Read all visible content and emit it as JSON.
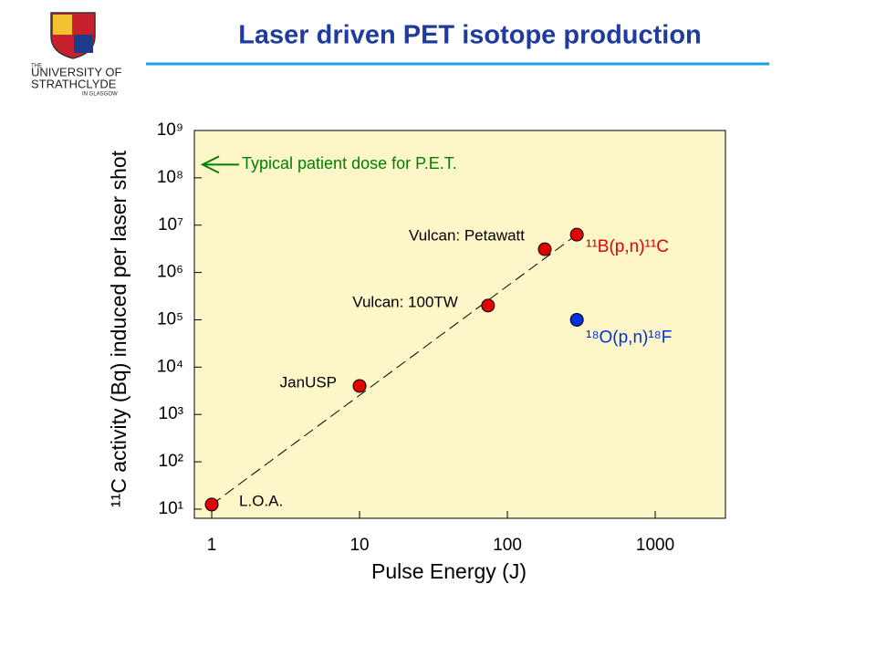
{
  "header": {
    "title": "Laser driven PET isotope production",
    "logo": [
      "THE",
      "UNIVERSITY OF",
      "STRATHCLYDE",
      "IN GLASGOW"
    ]
  },
  "chart_data": {
    "type": "scatter",
    "log_x": true,
    "log_y": true,
    "x_label": "Pulse Energy (J)",
    "y_label": "¹¹C activity (Bq) induced per laser shot",
    "xlim": [
      0.763,
      2985
    ],
    "ylim": [
      6.4,
      1000000000
    ],
    "xticks": [
      1,
      10,
      100,
      1000
    ],
    "yticks": [
      {
        "value": 10,
        "label": "10¹"
      },
      {
        "value": 100,
        "label": "10²"
      },
      {
        "value": 1000,
        "label": "10³"
      },
      {
        "value": 10000,
        "label": "10⁴"
      },
      {
        "value": 100000,
        "label": "10⁵"
      },
      {
        "value": 1000000,
        "label": "10⁶"
      },
      {
        "value": 10000000,
        "label": "10⁷"
      },
      {
        "value": 100000000,
        "label": "10⁸"
      },
      {
        "value": 1000000000,
        "label": "10⁹"
      }
    ],
    "background": "#fdf6c8",
    "series": [
      {
        "name": "¹¹B(p,n)¹¹C",
        "color": "#e00000",
        "x": [
          1,
          10,
          74,
          179,
          295
        ],
        "values": [
          12.5,
          4000,
          200000,
          3100000,
          6300000
        ],
        "point_labels": [
          "L.O.A.",
          "JanUSP",
          "Vulcan: 100TW",
          "Vulcan: Petawatt",
          null
        ]
      },
      {
        "name": "¹⁸O(p,n)¹⁸F",
        "color": "#0030e0",
        "x": [
          295
        ],
        "values": [
          100000
        ]
      }
    ],
    "trend": {
      "x": [
        1,
        295
      ],
      "values": [
        12.5,
        6300000
      ],
      "color": "#000000"
    },
    "annotation": {
      "text": "Typical patient dose for P.E.T.",
      "y": 190000000,
      "color": "#008000"
    }
  }
}
